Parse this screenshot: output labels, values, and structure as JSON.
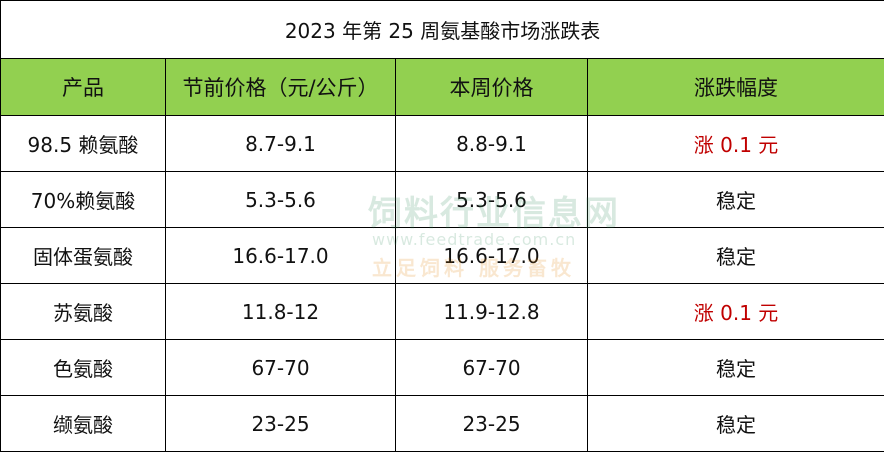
{
  "title": "2023 年第 25 周氨基酸市场涨跌表",
  "table": {
    "header": [
      "产品",
      "节前价格（元/公斤）",
      "本周价格",
      "涨跌幅度"
    ],
    "rows": [
      [
        "98.5 赖氨酸",
        "8.7-9.1",
        "8.8-9.1",
        "涨 0.1 元"
      ],
      [
        "70%赖氨酸",
        "5.3-5.6",
        "5.3-5.6",
        "稳定"
      ],
      [
        "固体蛋氨酸",
        "16.6-17.0",
        "16.6-17.0",
        "稳定"
      ],
      [
        "苏氨酸",
        "11.8-12",
        "11.9-12.8",
        "涨 0.1 元"
      ],
      [
        "色氨酸",
        "67-70",
        "67-70",
        "稳定"
      ],
      [
        "缬氨酸",
        "23-25",
        "23-25",
        "稳定"
      ]
    ]
  },
  "watermark": [
    "饲料行业信息网",
    "www.feedtrade.com.cn",
    "立足饲料 服务畜牧"
  ]
}
